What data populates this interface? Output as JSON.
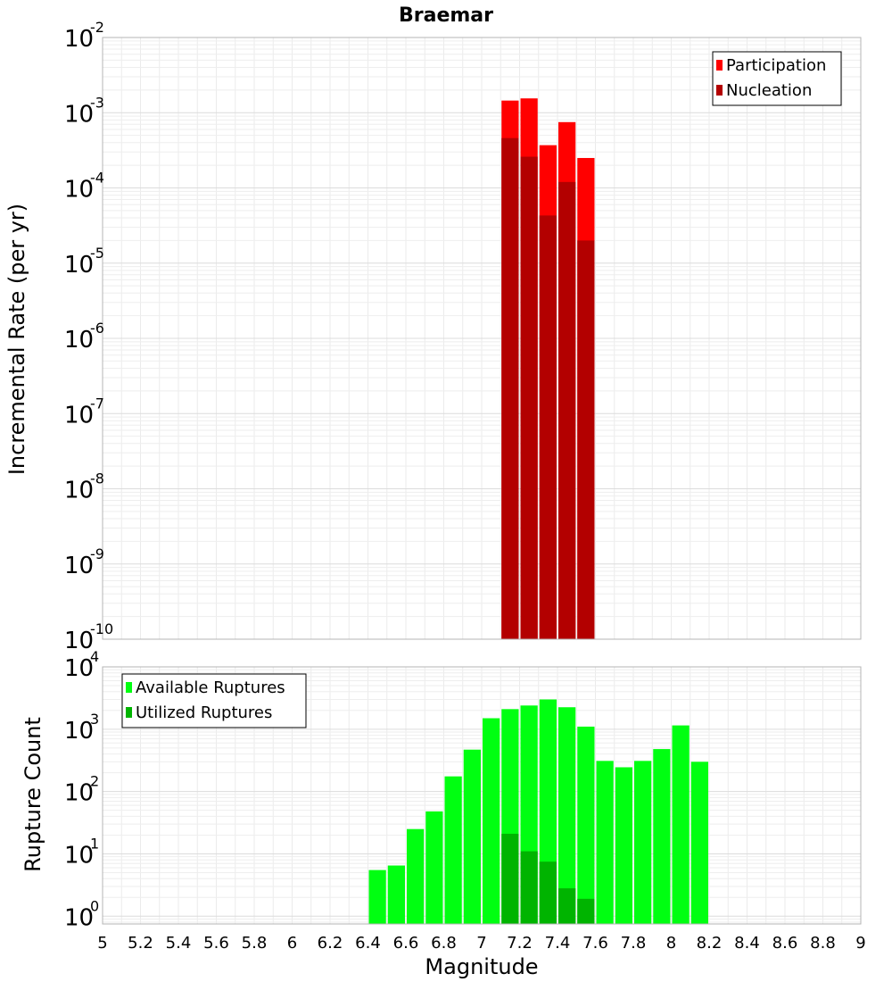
{
  "chart_data": [
    {
      "type": "bar",
      "title": "Braemar",
      "xlabel": "",
      "ylabel": "Incremental Rate (per yr)",
      "yscale": "log",
      "ylim": [
        1e-10,
        0.01
      ],
      "xlim": [
        5,
        9
      ],
      "bin_width": 0.1,
      "y_ticks": [
        {
          "base": "10",
          "exp": "-10",
          "value": 1e-10
        },
        {
          "base": "10",
          "exp": "-9",
          "value": 1e-09
        },
        {
          "base": "10",
          "exp": "-8",
          "value": 1e-08
        },
        {
          "base": "10",
          "exp": "-7",
          "value": 1e-07
        },
        {
          "base": "10",
          "exp": "-6",
          "value": 1e-06
        },
        {
          "base": "10",
          "exp": "-5",
          "value": 1e-05
        },
        {
          "base": "10",
          "exp": "-4",
          "value": 0.0001
        },
        {
          "base": "10",
          "exp": "-3",
          "value": 0.001
        },
        {
          "base": "10",
          "exp": "-2",
          "value": 0.01
        }
      ],
      "legend": "top-right",
      "grid": true,
      "series": [
        {
          "name": "Participation",
          "color": "#ff0000",
          "x": [
            7.15,
            7.25,
            7.35,
            7.45,
            7.55
          ],
          "values": [
            0.00145,
            0.00155,
            0.00037,
            0.00075,
            0.00025
          ]
        },
        {
          "name": "Nucleation",
          "color": "#b30000",
          "x": [
            7.15,
            7.25,
            7.35,
            7.45,
            7.55
          ],
          "values": [
            0.00046,
            0.00026,
            4.3e-05,
            0.00012,
            2e-05
          ]
        }
      ]
    },
    {
      "type": "bar",
      "title": "",
      "xlabel": "Magnitude",
      "ylabel": "Rupture Count",
      "yscale": "log",
      "ylim": [
        0.75,
        10000
      ],
      "xlim": [
        5,
        9
      ],
      "bin_width": 0.1,
      "y_ticks": [
        {
          "base": "10",
          "exp": "0",
          "value": 1
        },
        {
          "base": "10",
          "exp": "1",
          "value": 10
        },
        {
          "base": "10",
          "exp": "2",
          "value": 100
        },
        {
          "base": "10",
          "exp": "3",
          "value": 1000
        },
        {
          "base": "10",
          "exp": "4",
          "value": 10000
        }
      ],
      "x_ticks": [
        "5",
        "5.2",
        "5.4",
        "5.6",
        "5.8",
        "6",
        "6.2",
        "6.4",
        "6.6",
        "6.8",
        "7",
        "7.2",
        "7.4",
        "7.6",
        "7.8",
        "8",
        "8.2",
        "8.4",
        "8.6",
        "8.8",
        "9"
      ],
      "legend": "top-left",
      "grid": true,
      "series": [
        {
          "name": "Available Ruptures",
          "color": "#00ff11",
          "x": [
            6.45,
            6.55,
            6.65,
            6.75,
            6.85,
            6.95,
            7.05,
            7.15,
            7.25,
            7.35,
            7.45,
            7.55,
            7.65,
            7.75,
            7.85,
            7.95,
            8.05,
            8.15
          ],
          "values": [
            5.5,
            6.5,
            25,
            48,
            175,
            470,
            1500,
            2100,
            2400,
            3000,
            2250,
            1100,
            310,
            245,
            310,
            480,
            1150,
            300
          ]
        },
        {
          "name": "Utilized Ruptures",
          "color": "#00b400",
          "x": [
            7.15,
            7.25,
            7.35,
            7.45,
            7.55
          ],
          "values": [
            21,
            11,
            7.5,
            2.8,
            1.9
          ]
        }
      ]
    }
  ]
}
